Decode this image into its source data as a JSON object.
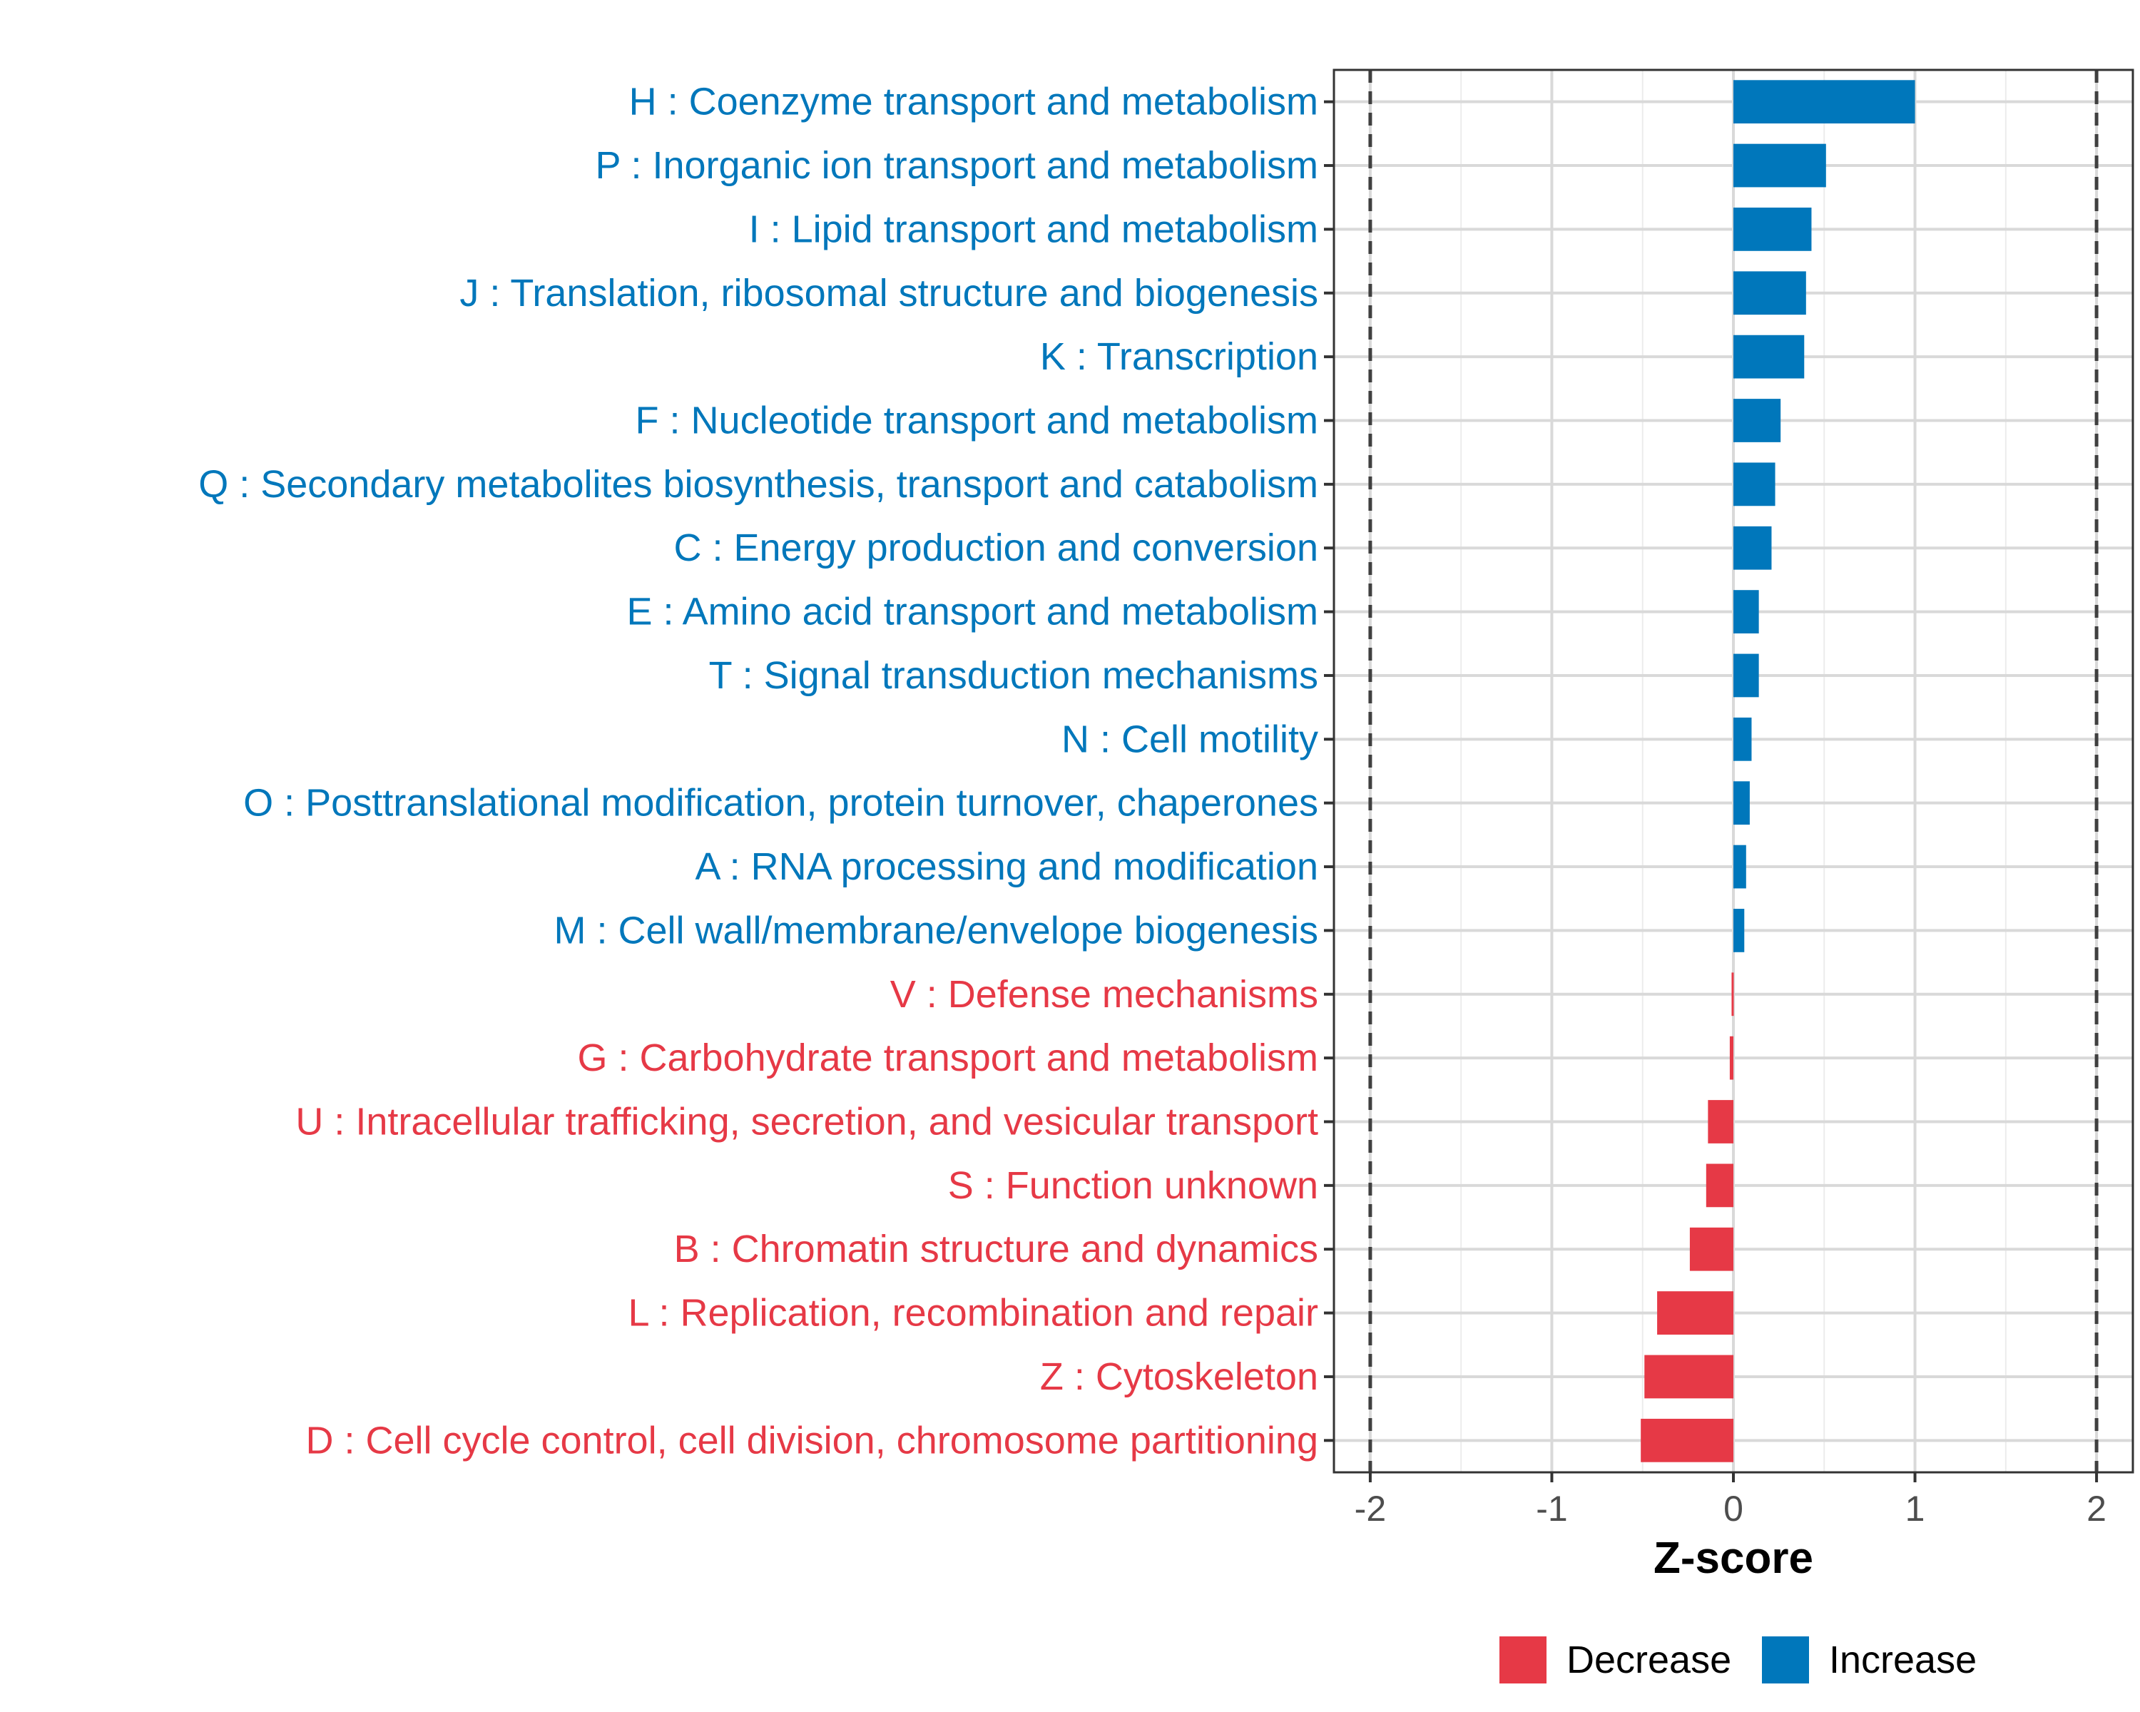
{
  "chart_data": {
    "type": "bar",
    "orientation": "horizontal",
    "title": "",
    "xlabel": "Z-score",
    "ylabel": "",
    "xlim": [
      -2.2,
      2.2
    ],
    "xticks": [
      "-2",
      "-1",
      "0",
      "1",
      "2"
    ],
    "xtick_values": [
      -2,
      -1,
      0,
      1,
      2
    ],
    "threshold_lines": [
      -2,
      2
    ],
    "grid": true,
    "colors": {
      "Increase": "#0077BB",
      "Decrease": "#E63946"
    },
    "categories": [
      "H : Coenzyme transport and metabolism",
      "P : Inorganic ion transport and metabolism",
      "I : Lipid transport and metabolism",
      "J : Translation, ribosomal structure and biogenesis",
      "K : Transcription",
      "F : Nucleotide transport and metabolism",
      "Q : Secondary metabolites biosynthesis, transport and catabolism",
      "C : Energy production and conversion",
      "E : Amino acid transport and metabolism",
      "T : Signal transduction mechanisms",
      "N : Cell motility",
      "O : Posttranslational modification, protein turnover, chaperones",
      "A : RNA processing and modification",
      "M : Cell wall/membrane/envelope biogenesis",
      "V : Defense mechanisms",
      "G : Carbohydrate transport and metabolism",
      "U : Intracellular trafficking, secretion, and vesicular transport",
      "S : Function unknown",
      "B : Chromatin structure and dynamics",
      "L : Replication, recombination and repair",
      "Z : Cytoskeleton",
      "D : Cell cycle control, cell division, chromosome partitioning"
    ],
    "values": [
      1.0,
      0.51,
      0.43,
      0.4,
      0.39,
      0.26,
      0.23,
      0.21,
      0.14,
      0.14,
      0.1,
      0.09,
      0.07,
      0.06,
      -0.01,
      -0.02,
      -0.14,
      -0.15,
      -0.24,
      -0.42,
      -0.49,
      -0.51
    ],
    "groups": [
      "Increase",
      "Increase",
      "Increase",
      "Increase",
      "Increase",
      "Increase",
      "Increase",
      "Increase",
      "Increase",
      "Increase",
      "Increase",
      "Increase",
      "Increase",
      "Increase",
      "Decrease",
      "Decrease",
      "Decrease",
      "Decrease",
      "Decrease",
      "Decrease",
      "Decrease",
      "Decrease"
    ],
    "legend": {
      "position": "bottom",
      "items": [
        {
          "label": "Decrease",
          "color": "#E63946"
        },
        {
          "label": "Increase",
          "color": "#0077BB"
        }
      ]
    }
  }
}
